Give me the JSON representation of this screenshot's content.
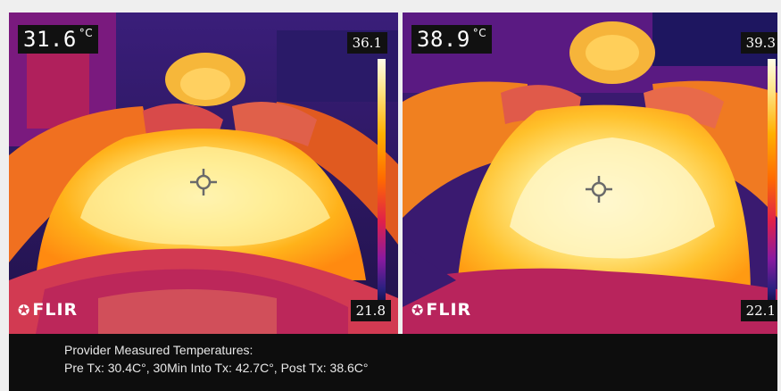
{
  "left_panel": {
    "spot_temp": "31.6",
    "spot_unit": "°C",
    "scale_max": "36.1",
    "scale_min": "21.8",
    "logo": "FLIR"
  },
  "right_panel": {
    "spot_temp": "38.9",
    "spot_unit": "°C",
    "scale_max": "39.3",
    "scale_min": "22.1",
    "logo": "FLIR"
  },
  "caption": {
    "line1": "Provider Measured Temperatures:",
    "line2": "Pre Tx: 30.4C°, 30Min Into Tx: 42.7C°, Post Tx: 38.6C°"
  },
  "colors": {
    "hot": "#fff6c0",
    "warm": "#ffb31a",
    "mid": "#f06a1a",
    "cool": "#c8205a",
    "cold": "#241a70"
  }
}
